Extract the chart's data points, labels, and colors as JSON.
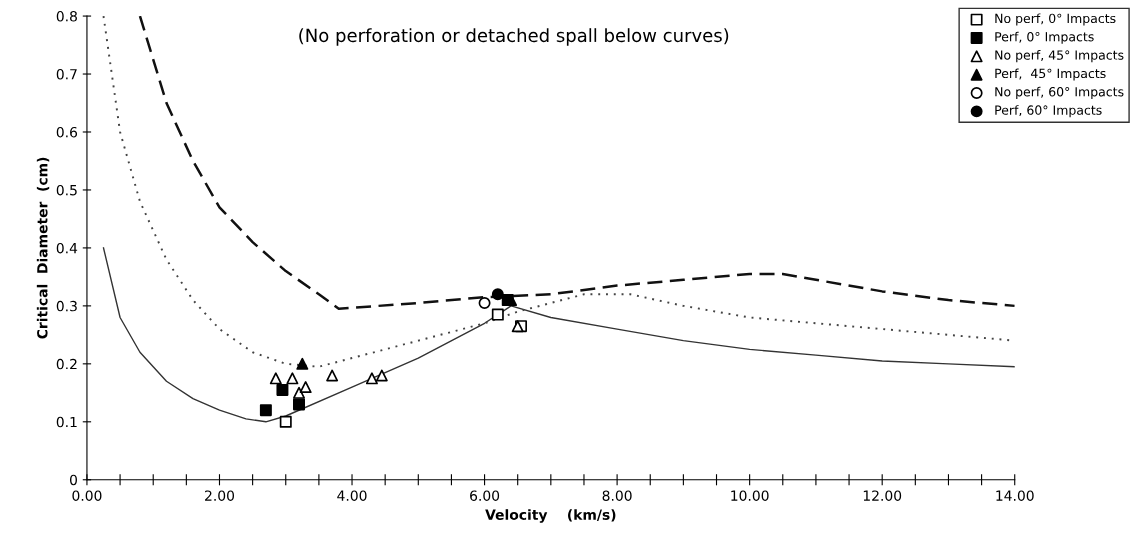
{
  "chart_data": {
    "type": "line",
    "xlabel": "Velocity    (km/s)",
    "ylabel": "Critical  Diameter  (cm)",
    "annotations": [
      "(No perforation or detached spall below curves)"
    ],
    "xlim": [
      0,
      14
    ],
    "ylim": [
      0,
      0.8
    ],
    "xticks": [
      {
        "value": 0,
        "label": "0.00"
      },
      {
        "value": 0.5,
        "label": null
      },
      {
        "value": 1,
        "label": null
      },
      {
        "value": 1.5,
        "label": null
      },
      {
        "value": 2,
        "label": "2.00"
      },
      {
        "value": 2.5,
        "label": null
      },
      {
        "value": 3,
        "label": null
      },
      {
        "value": 3.5,
        "label": null
      },
      {
        "value": 4,
        "label": "4.00"
      },
      {
        "value": 4.5,
        "label": null
      },
      {
        "value": 5,
        "label": null
      },
      {
        "value": 5.5,
        "label": null
      },
      {
        "value": 6,
        "label": "6.00"
      },
      {
        "value": 6.5,
        "label": null
      },
      {
        "value": 7,
        "label": null
      },
      {
        "value": 7.5,
        "label": null
      },
      {
        "value": 8,
        "label": "8.00"
      },
      {
        "value": 8.5,
        "label": null
      },
      {
        "value": 9,
        "label": null
      },
      {
        "value": 9.5,
        "label": null
      },
      {
        "value": 10,
        "label": "10.00"
      },
      {
        "value": 10.5,
        "label": null
      },
      {
        "value": 11,
        "label": null
      },
      {
        "value": 11.5,
        "label": null
      },
      {
        "value": 12,
        "label": "12.00"
      },
      {
        "value": 12.5,
        "label": null
      },
      {
        "value": 13,
        "label": null
      },
      {
        "value": 13.5,
        "label": null
      },
      {
        "value": 14,
        "label": "14.00"
      }
    ],
    "yticks": [
      0,
      0.1,
      0.2,
      0.3,
      0.4,
      0.5,
      0.6,
      0.7,
      0.8
    ],
    "grid": false,
    "legend": "top right",
    "series": [
      {
        "line_style": "solid",
        "color": "#333333",
        "x": [
          0.25,
          0.5,
          0.8,
          1.2,
          1.6,
          2.0,
          2.4,
          2.7,
          3.0,
          4.0,
          5.0,
          6.0,
          6.4,
          7.0,
          8.0,
          9.0,
          10.0,
          11.0,
          12.0,
          13.0,
          14.0
        ],
        "values": [
          0.4,
          0.28,
          0.22,
          0.17,
          0.14,
          0.12,
          0.105,
          0.1,
          0.11,
          0.16,
          0.21,
          0.27,
          0.3,
          0.28,
          0.26,
          0.24,
          0.225,
          0.215,
          0.205,
          0.2,
          0.195
        ]
      },
      {
        "line_style": "dotted",
        "color": "#444444",
        "x": [
          0.25,
          0.5,
          0.8,
          1.2,
          1.6,
          2.0,
          2.5,
          3.0,
          3.5,
          4.0,
          5.0,
          6.0,
          6.5,
          7.5,
          8.2,
          9.0,
          10.0,
          11.0,
          12.0,
          13.0,
          14.0
        ],
        "values": [
          0.8,
          0.6,
          0.48,
          0.38,
          0.31,
          0.26,
          0.22,
          0.2,
          0.195,
          0.21,
          0.24,
          0.27,
          0.29,
          0.32,
          0.32,
          0.3,
          0.28,
          0.27,
          0.26,
          0.25,
          0.24
        ]
      },
      {
        "line_style": "dashed",
        "color": "#111111",
        "x": [
          0.8,
          1.2,
          1.6,
          2.0,
          2.5,
          3.0,
          3.5,
          3.8,
          5.0,
          6.0,
          7.0,
          8.0,
          9.0,
          10.0,
          10.5,
          11.0,
          12.0,
          13.0,
          14.0
        ],
        "values": [
          0.8,
          0.65,
          0.55,
          0.47,
          0.41,
          0.36,
          0.32,
          0.295,
          0.305,
          0.315,
          0.32,
          0.335,
          0.345,
          0.355,
          0.355,
          0.345,
          0.325,
          0.31,
          0.3
        ]
      },
      {
        "type": "scatter",
        "name": "No perf, 0° Impacts",
        "marker": "square",
        "color": "#ffffff",
        "x": [
          3.0,
          6.2,
          6.55
        ],
        "values": [
          0.1,
          0.285,
          0.265
        ]
      },
      {
        "type": "scatter",
        "name": "Perf, 0° Impacts",
        "marker": "square",
        "color": "#000000",
        "x": [
          2.7,
          2.95,
          3.2,
          6.35
        ],
        "values": [
          0.12,
          0.155,
          0.13,
          0.31
        ]
      },
      {
        "type": "scatter",
        "name": "No perf, 45° Impacts",
        "marker": "triangle",
        "color": "#ffffff",
        "x": [
          2.85,
          3.1,
          3.2,
          3.3,
          3.7,
          4.3,
          4.45,
          6.5
        ],
        "values": [
          0.175,
          0.175,
          0.15,
          0.16,
          0.18,
          0.175,
          0.18,
          0.265
        ]
      },
      {
        "type": "scatter",
        "name": "Perf,  45° Impacts",
        "marker": "triangle",
        "color": "#000000",
        "x": [
          3.25,
          6.4
        ],
        "values": [
          0.2,
          0.31
        ]
      },
      {
        "type": "scatter",
        "name": "No perf, 60° Impacts",
        "marker": "circle",
        "color": "#ffffff",
        "x": [
          6.0
        ],
        "values": [
          0.305
        ]
      },
      {
        "type": "scatter",
        "name": "Perf, 60° Impacts",
        "marker": "circle",
        "color": "#000000",
        "x": [
          6.2
        ],
        "values": [
          0.32
        ]
      }
    ]
  }
}
